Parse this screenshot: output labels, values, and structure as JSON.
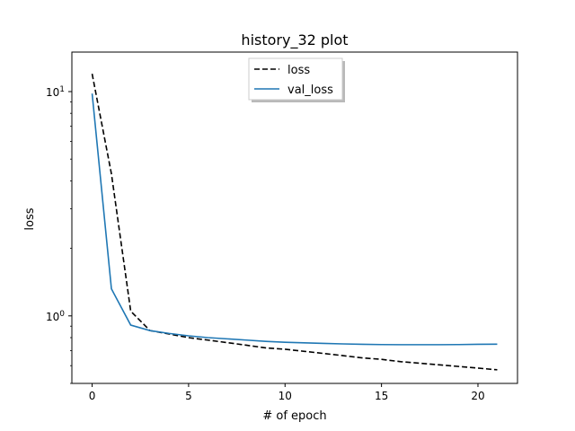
{
  "chart_data": {
    "type": "line",
    "title": "history_32 plot",
    "xlabel": "# of epoch",
    "ylabel": "loss",
    "yscale": "log",
    "xlim": [
      -1.05,
      22.05
    ],
    "ylim": [
      0.5,
      15.0
    ],
    "xticks": [
      0,
      5,
      10,
      15,
      20
    ],
    "yticks": [
      {
        "value": 1,
        "label": "10⁰"
      },
      {
        "value": 10,
        "label": "10¹"
      }
    ],
    "legend_position": "top-center",
    "grid": false,
    "x": [
      0,
      1,
      2,
      3,
      4,
      5,
      6,
      7,
      8,
      9,
      10,
      11,
      12,
      13,
      14,
      15,
      16,
      17,
      18,
      19,
      20,
      21
    ],
    "series": [
      {
        "name": "loss",
        "color": "#000000",
        "style": "dashed",
        "values": [
          12.0,
          4.3,
          1.05,
          0.86,
          0.83,
          0.8,
          0.78,
          0.76,
          0.74,
          0.72,
          0.71,
          0.695,
          0.68,
          0.665,
          0.65,
          0.64,
          0.625,
          0.615,
          0.605,
          0.595,
          0.585,
          0.575
        ]
      },
      {
        "name": "val_loss",
        "color": "#1f77b4",
        "style": "solid",
        "values": [
          9.8,
          1.32,
          0.91,
          0.86,
          0.835,
          0.815,
          0.8,
          0.79,
          0.78,
          0.77,
          0.763,
          0.758,
          0.754,
          0.75,
          0.747,
          0.745,
          0.744,
          0.744,
          0.744,
          0.745,
          0.747,
          0.748
        ]
      }
    ]
  }
}
